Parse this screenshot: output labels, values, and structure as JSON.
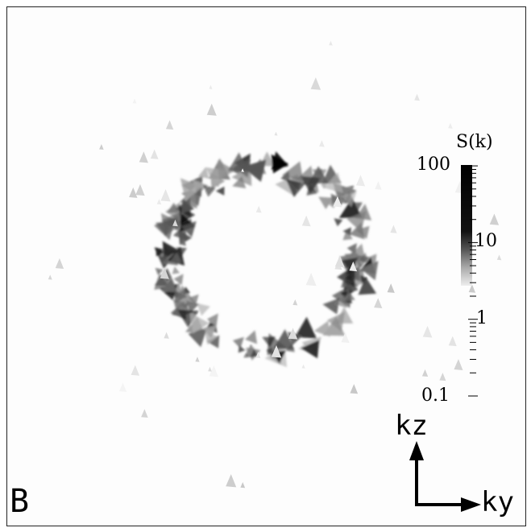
{
  "panel_label": "B",
  "colorbar": {
    "title": "S(k)",
    "ticks": [
      "100",
      "10",
      "1",
      "0.1"
    ],
    "scale": "log",
    "range": [
      0.1,
      100
    ]
  },
  "axes": {
    "vertical": "kz",
    "horizontal": "ky"
  },
  "colors": {
    "background": "#ffffff",
    "ink": "#000000"
  }
}
